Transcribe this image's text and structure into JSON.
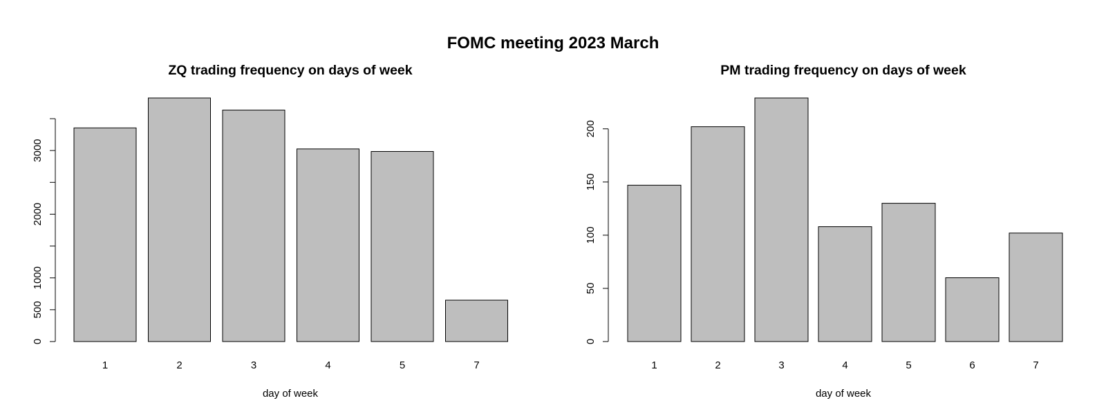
{
  "figure": {
    "title": "FOMC meeting 2023 March"
  },
  "chart_data": [
    {
      "type": "bar",
      "title": "ZQ trading frequency on days of week",
      "xlabel": "day of week",
      "ylabel": "",
      "categories": [
        "1",
        "2",
        "3",
        "4",
        "5",
        "7"
      ],
      "values": [
        3355,
        3825,
        3635,
        3025,
        2985,
        650
      ],
      "ylim": [
        0,
        3825
      ],
      "yticks": [
        0,
        500,
        1000,
        1500,
        2000,
        2500,
        3000,
        3500
      ],
      "ytick_labels": [
        "0",
        "500",
        "1000",
        "",
        "2000",
        "",
        "3000",
        ""
      ],
      "bar_color": "#bebebe",
      "grid": false
    },
    {
      "type": "bar",
      "title": "PM trading frequency on days of week",
      "xlabel": "day of week",
      "ylabel": "",
      "categories": [
        "1",
        "2",
        "3",
        "4",
        "5",
        "6",
        "7"
      ],
      "values": [
        147,
        202,
        229,
        108,
        130,
        60,
        102
      ],
      "ylim": [
        0,
        229
      ],
      "yticks": [
        0,
        50,
        100,
        150,
        200
      ],
      "ytick_labels": [
        "0",
        "50",
        "100",
        "150",
        "200"
      ],
      "bar_color": "#bebebe",
      "grid": false
    }
  ]
}
